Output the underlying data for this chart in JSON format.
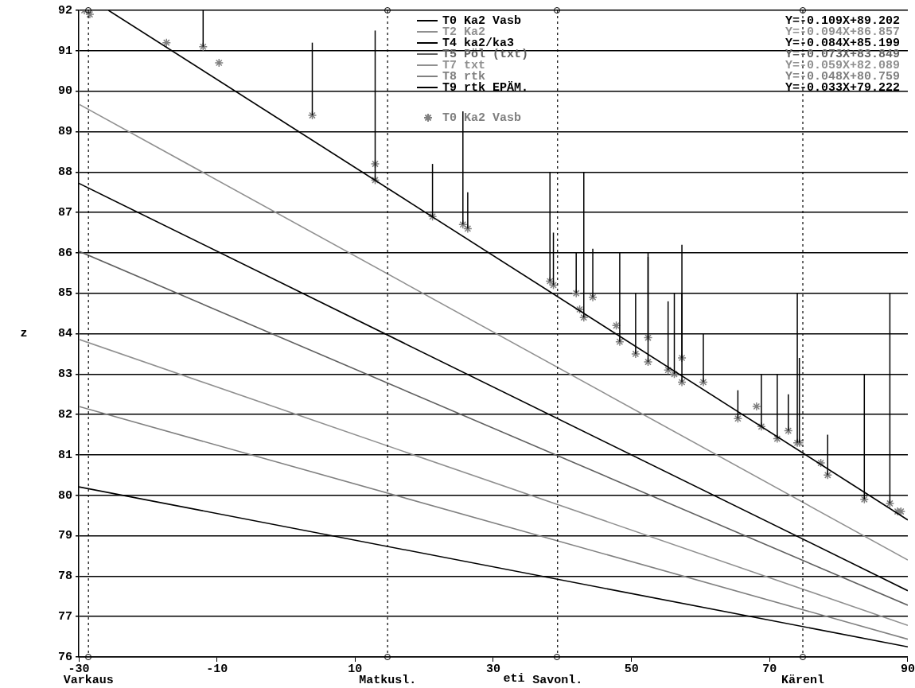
{
  "chart_data": {
    "type": "line",
    "ylabel": "z",
    "xlim": [
      -30,
      90
    ],
    "xticks": [
      -30,
      -10,
      10,
      30,
      50,
      70,
      90
    ],
    "ylim": [
      76,
      92
    ],
    "yticks": [
      76,
      77,
      78,
      79,
      80,
      81,
      82,
      83,
      84,
      85,
      86,
      87,
      88,
      89,
      90,
      91,
      92
    ],
    "grid": "y",
    "legend": "top right",
    "line_style": "solid",
    "marker": "none",
    "series": [
      {
        "name": "T0 Ka2 Vasb",
        "color": "#000000",
        "x": [
          -25.7,
          90
        ],
        "values": [
          92.0,
          79.39
        ]
      },
      {
        "name": "T2 Ka2",
        "color": "#909090",
        "x": [
          -30,
          90
        ],
        "values": [
          89.68,
          78.4
        ]
      },
      {
        "name": "T4 ka2/ka3",
        "color": "#000000",
        "x": [
          -30,
          90
        ],
        "values": [
          87.72,
          77.64
        ]
      },
      {
        "name": "T5 Pöl (txt)",
        "color": "#606060",
        "x": [
          -30,
          90
        ],
        "values": [
          86.04,
          77.28
        ]
      },
      {
        "name": "T7 txt",
        "color": "#909090",
        "x": [
          -30,
          90
        ],
        "values": [
          83.86,
          76.78
        ]
      },
      {
        "name": "T8 rtk",
        "color": "#808080",
        "x": [
          -30,
          90
        ],
        "values": [
          82.2,
          76.44
        ]
      },
      {
        "name": "T9 rtk EPÄM.",
        "color": "#000000",
        "x": [
          -30,
          90
        ],
        "values": [
          80.21,
          76.25
        ]
      },
      {
        "name": "T0 Ka2 Vasb",
        "type": "scatter",
        "marker": "cross",
        "color": "#808080",
        "x": [
          -29.2,
          -28.4,
          -17.3,
          -12.0,
          -9.7,
          3.8,
          12.9,
          12.9,
          21.2,
          25.6,
          26.3,
          38.2,
          38.7,
          42.0,
          42.5,
          43.1,
          44.4,
          47.8,
          48.3,
          50.6,
          52.4,
          52.4,
          55.3,
          56.2,
          57.3,
          57.3,
          60.4,
          65.4,
          68.1,
          68.8,
          71.1,
          72.7,
          74.0,
          74.3,
          77.4,
          78.4,
          83.7,
          87.4,
          88.5,
          89.0
        ],
        "values": [
          92.0,
          91.9,
          91.2,
          91.1,
          90.7,
          89.4,
          88.2,
          87.8,
          86.9,
          86.7,
          86.6,
          85.3,
          85.2,
          85.0,
          84.6,
          84.4,
          84.9,
          84.2,
          83.8,
          83.5,
          83.9,
          83.3,
          83.1,
          83.0,
          83.4,
          82.8,
          82.8,
          81.9,
          82.2,
          81.7,
          81.4,
          81.6,
          81.3,
          81.3,
          80.8,
          80.5,
          79.9,
          79.8,
          79.6,
          79.6
        ],
        "errors": [
          null,
          null,
          null,
          [
            91.1,
            92.0
          ],
          null,
          [
            89.4,
            91.2
          ],
          null,
          [
            87.8,
            91.5
          ],
          [
            86.9,
            88.2
          ],
          [
            86.7,
            89.5
          ],
          [
            86.6,
            87.5
          ],
          [
            85.3,
            88.0
          ],
          [
            85.2,
            86.5
          ],
          [
            85.0,
            86.0
          ],
          null,
          [
            84.4,
            88.0
          ],
          [
            84.9,
            86.1
          ],
          null,
          [
            83.8,
            86.0
          ],
          [
            83.5,
            85.0
          ],
          [
            83.9,
            86.0
          ],
          [
            83.3,
            85.9
          ],
          [
            83.1,
            84.8
          ],
          [
            83.0,
            85.0
          ],
          [
            83.4,
            86.2
          ],
          [
            82.8,
            85.0
          ],
          [
            82.8,
            84.0
          ],
          [
            81.9,
            82.6
          ],
          null,
          [
            81.7,
            83.0
          ],
          [
            81.4,
            83.0
          ],
          [
            81.6,
            82.5
          ],
          [
            81.3,
            85.0
          ],
          [
            81.3,
            83.4
          ],
          null,
          [
            80.5,
            81.5
          ],
          [
            79.9,
            83.0
          ],
          [
            79.8,
            85.0
          ],
          null,
          null
        ]
      }
    ],
    "ref_lines": [
      {
        "axis": "x",
        "value": -28.6,
        "label": "Varkaus",
        "line_style": "dotted"
      },
      {
        "axis": "x",
        "value": 14.7,
        "label": "Matkusl.",
        "line_style": "dotted"
      },
      {
        "axis": "x",
        "value": 39.3,
        "label": "Savonl.",
        "line_style": "dotted"
      },
      {
        "axis": "x",
        "value": 74.8,
        "label": "Kärenl",
        "line_style": "dotted"
      }
    ],
    "annotations": [
      "Y=-0.109X+89.202",
      "Y=-0.094X+86.857",
      "Y=-0.084X+85.199",
      "Y=-0.073X+83.849",
      "Y=-0.059X+82.089",
      "Y=-0.048X+80.759",
      "Y=-0.033X+79.222",
      "eti"
    ]
  }
}
